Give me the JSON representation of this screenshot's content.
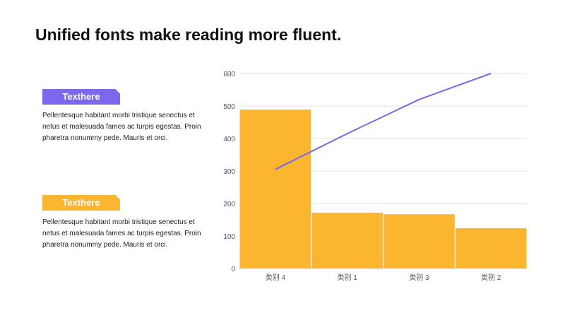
{
  "title": "Unified fonts make reading more fluent.",
  "blocks": [
    {
      "tag": "Texthere",
      "text": "Pellentesque habitant morbi tristique senectus et netus et malesuada fames ac turpis egestas. Proin pharetra nonummy pede. Mauris et orci.",
      "color": "#7b68ee"
    },
    {
      "tag": "Texthere",
      "text": "Pellentesque habitant morbi tristique senectus et netus et malesuada fames ac turpis egestas. Proin pharetra nonummy pede. Mauris et orci.",
      "color": "#fbb52e"
    }
  ],
  "chart_data": {
    "type": "bar",
    "categories": [
      "类别 4",
      "类别 1",
      "类别 3",
      "类别 2"
    ],
    "series": [
      {
        "values": [
          490,
          173,
          168,
          125
        ],
        "color": "#fbb52e",
        "kind": "bar"
      },
      {
        "values": [
          305,
          415,
          520,
          600
        ],
        "color": "#7b68ee",
        "kind": "line"
      }
    ],
    "ylim": [
      0,
      600
    ],
    "yticks": [
      0,
      100,
      200,
      300,
      400,
      500,
      600
    ],
    "grid": true,
    "xlabel": "",
    "ylabel": ""
  }
}
